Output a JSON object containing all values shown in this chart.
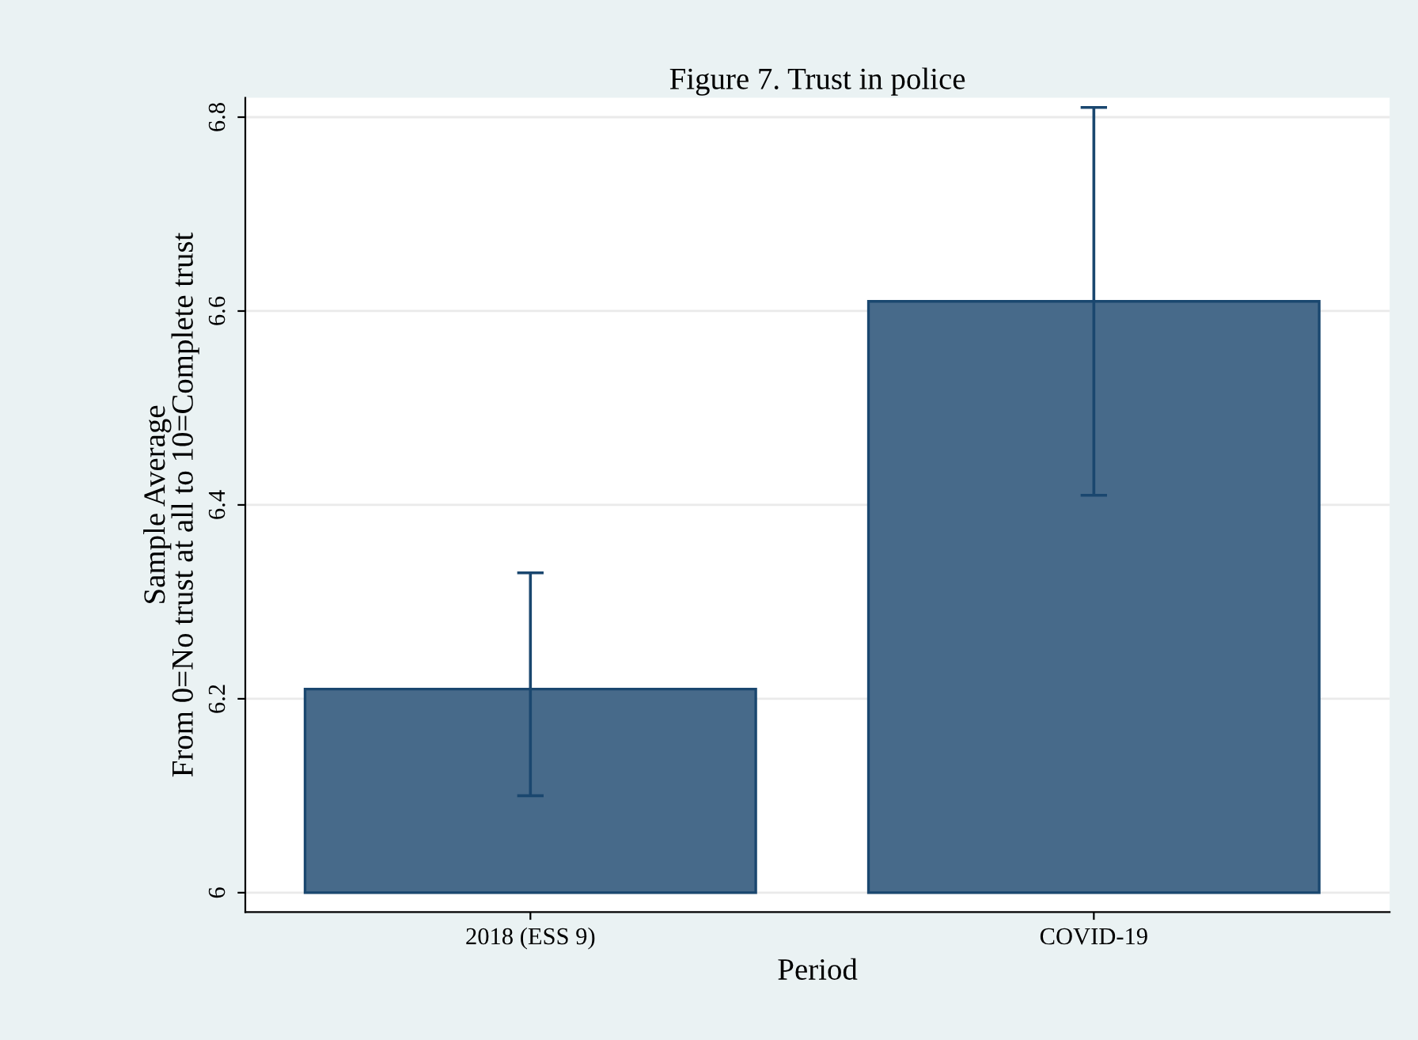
{
  "chart_data": {
    "type": "bar",
    "title": "Figure 7. Trust in police",
    "xlabel": "Period",
    "ylabel": "Sample Average\nFrom 0=No trust at all to 10=Complete trust",
    "categories": [
      "2018 (ESS 9)",
      "COVID-19"
    ],
    "values": [
      0.21,
      0.61
    ],
    "base": [
      6,
      6
    ],
    "color": "#476a8a",
    "errors": [
      [
        6.1,
        6.33
      ],
      [
        6.41,
        6.81
      ]
    ],
    "ylim": [
      5.98,
      6.82
    ],
    "yticks": [
      6,
      6.2,
      6.4,
      6.6,
      6.8
    ],
    "grid": "y"
  }
}
